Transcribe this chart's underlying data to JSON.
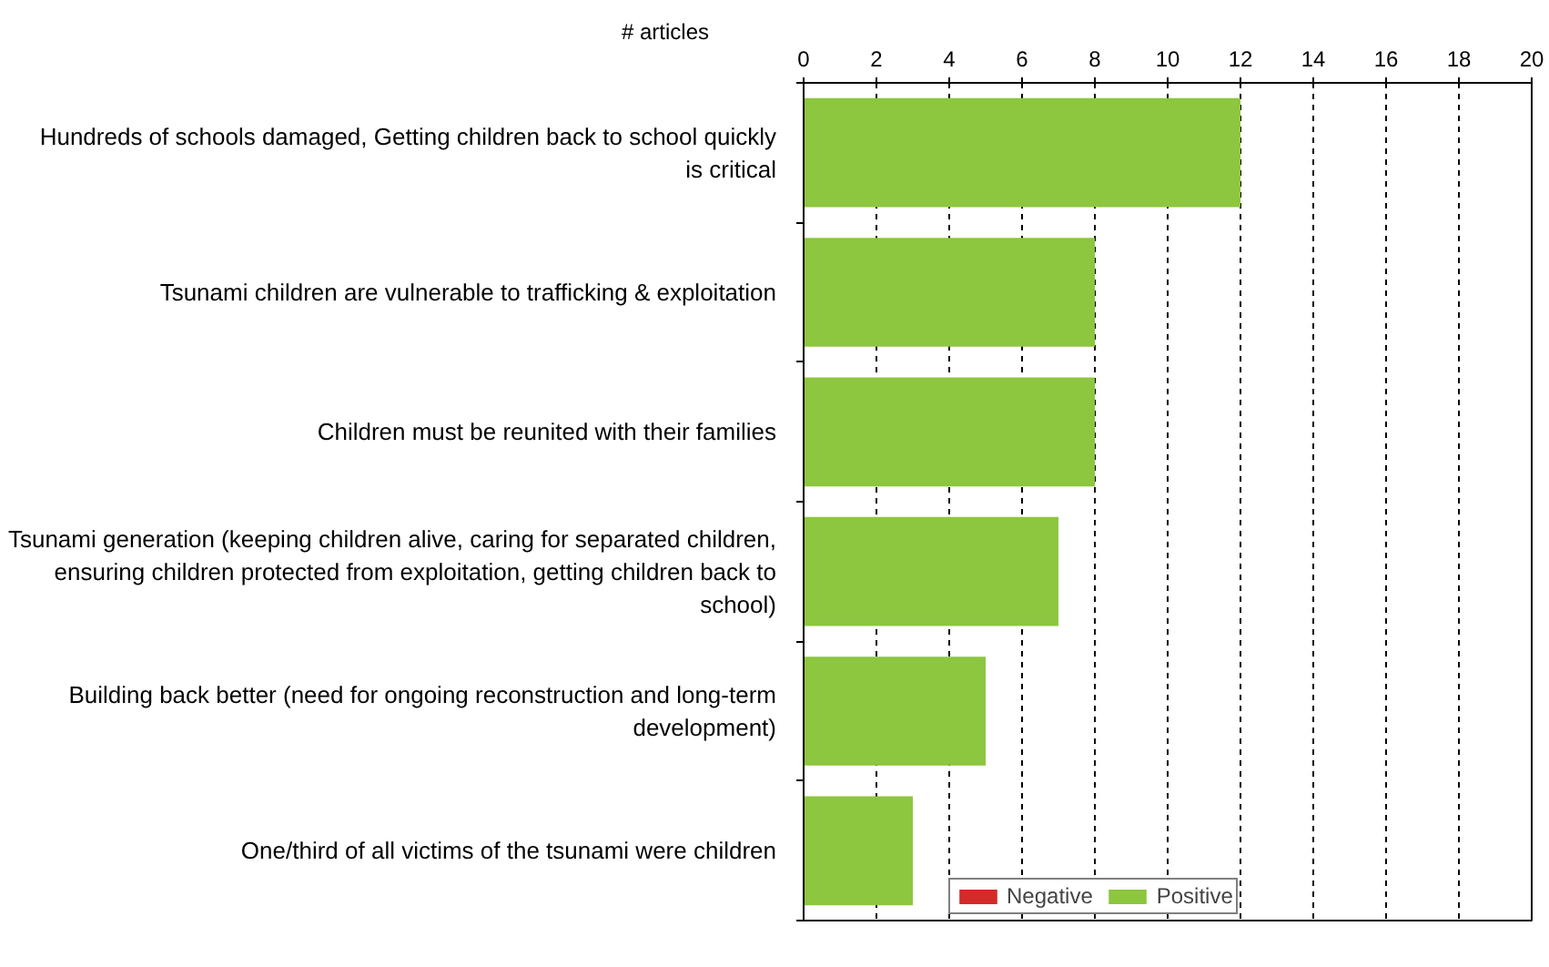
{
  "chart_data": {
    "type": "bar",
    "orientation": "horizontal",
    "stacked": true,
    "xlabel": "# articles",
    "categories": [
      "Hundreds of schools damaged, Getting children back to school quickly\nis critical",
      "Tsunami children are vulnerable to trafficking & exploitation",
      "Children must be reunited with their families",
      "Tsunami generation (keeping children alive, caring for separated children,\nensuring children protected from exploitation, getting children back to\nschool)",
      "Building back better (need for ongoing reconstruction and long-term\ndevelopment)",
      "One/third of all victims of the tsunami were children"
    ],
    "series": [
      {
        "name": "Negative",
        "color": "#d42a2a",
        "values": [
          null,
          null,
          null,
          null,
          null,
          null
        ]
      },
      {
        "name": "Positive",
        "color": "#8dc63f",
        "values": [
          12,
          8,
          8,
          7,
          5,
          3
        ]
      }
    ],
    "xlim": [
      0,
      20
    ],
    "xticks": [
      0,
      2,
      4,
      6,
      8,
      10,
      12,
      14,
      16,
      18,
      20
    ],
    "grid": "x",
    "legend": "bottom"
  }
}
